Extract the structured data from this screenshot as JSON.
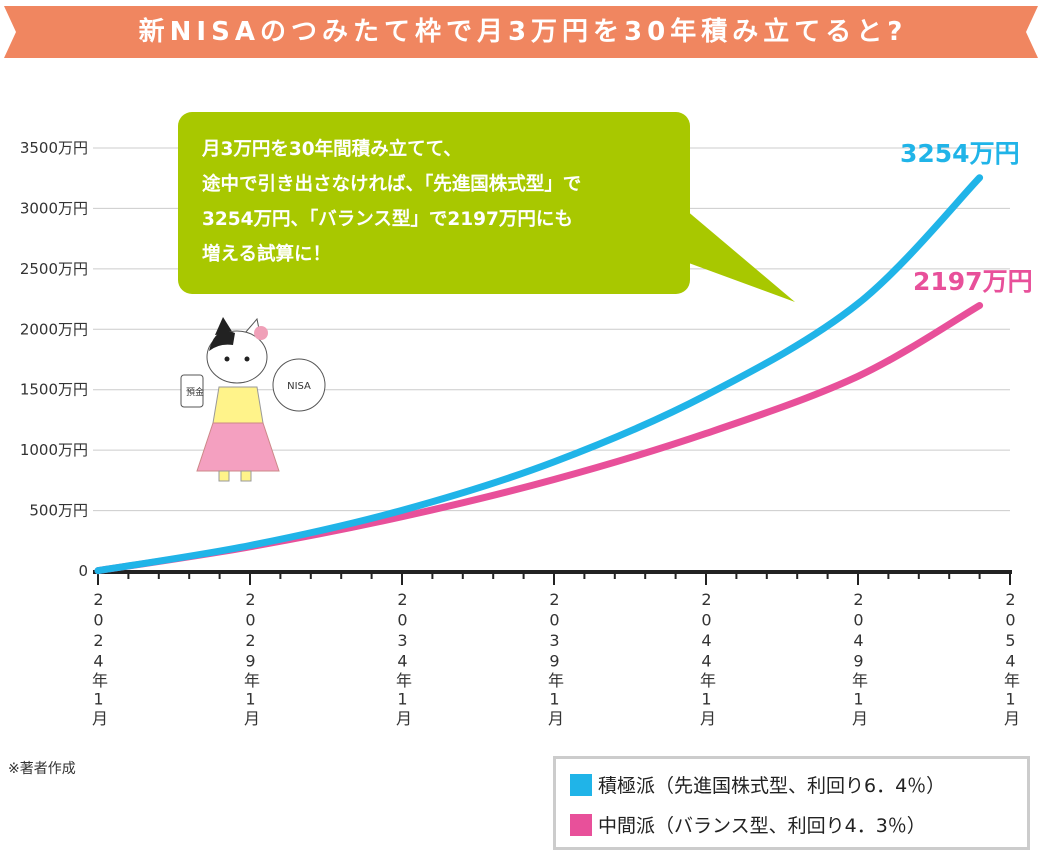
{
  "title": "新NISAのつみたて枠で月3万円を30年積み立てると?",
  "callout": {
    "lines": [
      "月3万円を30年間積み立てて、",
      "途中で引き出さなければ、「先進国株式型」で",
      "3254万円、「バランス型」で2197万円にも",
      "増える試算に！"
    ]
  },
  "note": "※著者作成",
  "illustration": {
    "sign_text": "NISA",
    "jar_text": "預金"
  },
  "colors": {
    "banner": "#f08660",
    "callout": "#a8c800",
    "series1": "#20b4e8",
    "series2": "#e8509a"
  },
  "chart_data": {
    "type": "line",
    "y_ticks": [
      "0",
      "500万円",
      "1000万円",
      "1500万円",
      "2000万円",
      "2500万円",
      "3000万円",
      "3500万円"
    ],
    "y_tick_values": [
      0,
      500,
      1000,
      1500,
      2000,
      2500,
      3000,
      3500
    ],
    "ylim": [
      0,
      3500
    ],
    "x_ticks": [
      "2024年1月",
      "2029年1月",
      "2034年1月",
      "2039年1月",
      "2044年1月",
      "2049年1月",
      "2054年1月"
    ],
    "x_tick_years": [
      2024,
      2029,
      2034,
      2039,
      2044,
      2049,
      2054
    ],
    "x": [
      2024,
      2029,
      2034,
      2039,
      2044,
      2049,
      2054
    ],
    "grid": true,
    "legend_placement": "bottom-right",
    "series": [
      {
        "name": "積極派（先進国株式型、利回り6．4％）",
        "values": [
          3,
          211,
          502,
          903,
          1454,
          2212,
          3254
        ],
        "end_label": "3254万円",
        "color": "#20b4e8"
      },
      {
        "name": "中間派（バランス型、利回り4．3％）",
        "values": [
          3,
          200,
          449,
          757,
          1138,
          1611,
          2197
        ],
        "end_label": "2197万円",
        "color": "#e8509a"
      }
    ]
  }
}
